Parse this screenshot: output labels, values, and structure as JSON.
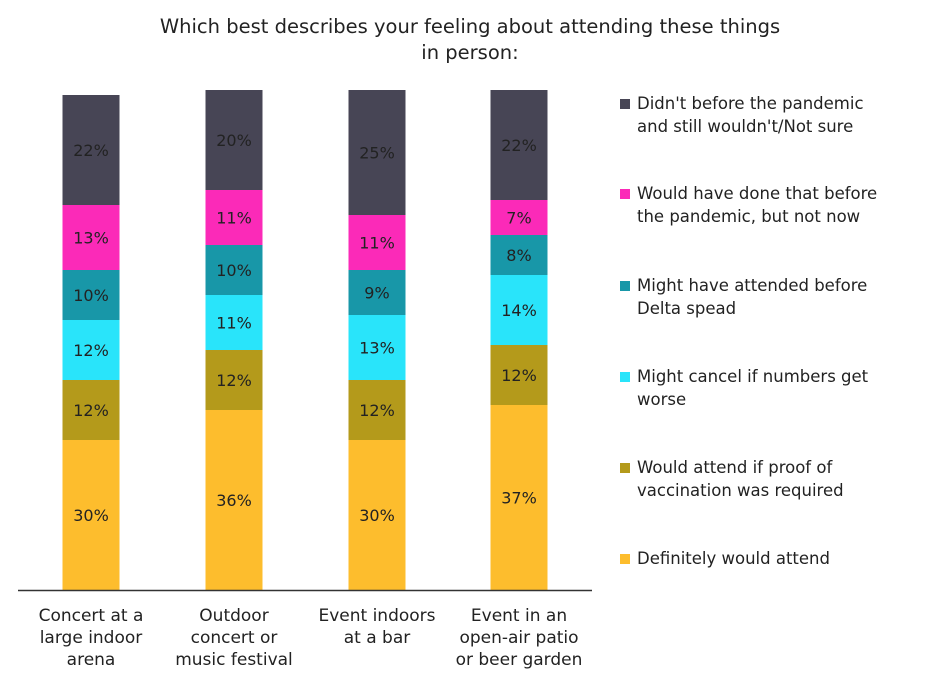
{
  "chart_data": {
    "type": "bar",
    "stacked": true,
    "title_lines": [
      "Which best describes your feeling about attending these things",
      "in person:"
    ],
    "categories": [
      [
        "Concert at a",
        "large indoor",
        "arena"
      ],
      [
        "Outdoor",
        "concert or",
        "music festival"
      ],
      [
        "Event indoors",
        "at a bar"
      ],
      [
        "Event in an",
        "open-air patio",
        "or beer garden"
      ]
    ],
    "series": [
      {
        "name": "Definitely would attend",
        "color": "#FDBD2D",
        "values": [
          30,
          36,
          30,
          37
        ],
        "labels": [
          "30%",
          "36%",
          "30%",
          "37%"
        ]
      },
      {
        "name": "Would attend if proof of vaccination was required",
        "color": "#B49A1B",
        "values": [
          12,
          12,
          12,
          12
        ],
        "labels": [
          "12%",
          "12%",
          "12%",
          "12%"
        ]
      },
      {
        "name": "Might cancel if numbers get worse",
        "color": "#29E4FA",
        "values": [
          12,
          11,
          13,
          14
        ],
        "labels": [
          "12%",
          "11%",
          "13%",
          "14%"
        ]
      },
      {
        "name": "Might have attended before Delta spead",
        "color": "#1897A8",
        "values": [
          10,
          10,
          9,
          8
        ],
        "labels": [
          "10%",
          "10%",
          "9%",
          "8%"
        ]
      },
      {
        "name": "Would have done that before the pandemic, but not now",
        "color": "#FB2AB8",
        "values": [
          13,
          11,
          11,
          7
        ],
        "labels": [
          "13%",
          "11%",
          "11%",
          "7%"
        ]
      },
      {
        "name": "Didn't before the pandemic and still wouldn't/Not sure",
        "color": "#474555",
        "values": [
          22,
          20,
          25,
          22
        ],
        "labels": [
          "22%",
          "20%",
          "25%",
          "22%"
        ]
      }
    ],
    "legend": {
      "position": "right",
      "entries": [
        {
          "lines": [
            "Didn't before the pandemic",
            "and still wouldn't/Not sure"
          ],
          "color": "#474555"
        },
        {
          "lines": [
            "Would have done that before",
            "the pandemic, but not now"
          ],
          "color": "#FB2AB8"
        },
        {
          "lines": [
            "Might have attended before",
            "Delta spead"
          ],
          "color": "#1897A8"
        },
        {
          "lines": [
            "Might cancel if numbers get",
            "worse"
          ],
          "color": "#29E4FA"
        },
        {
          "lines": [
            "Would attend if proof of",
            "vaccination was required"
          ],
          "color": "#B49A1B"
        },
        {
          "lines": [
            "Definitely would attend"
          ],
          "color": "#FDBD2D"
        }
      ]
    },
    "grid": false,
    "xlabel": "",
    "ylabel": ""
  }
}
